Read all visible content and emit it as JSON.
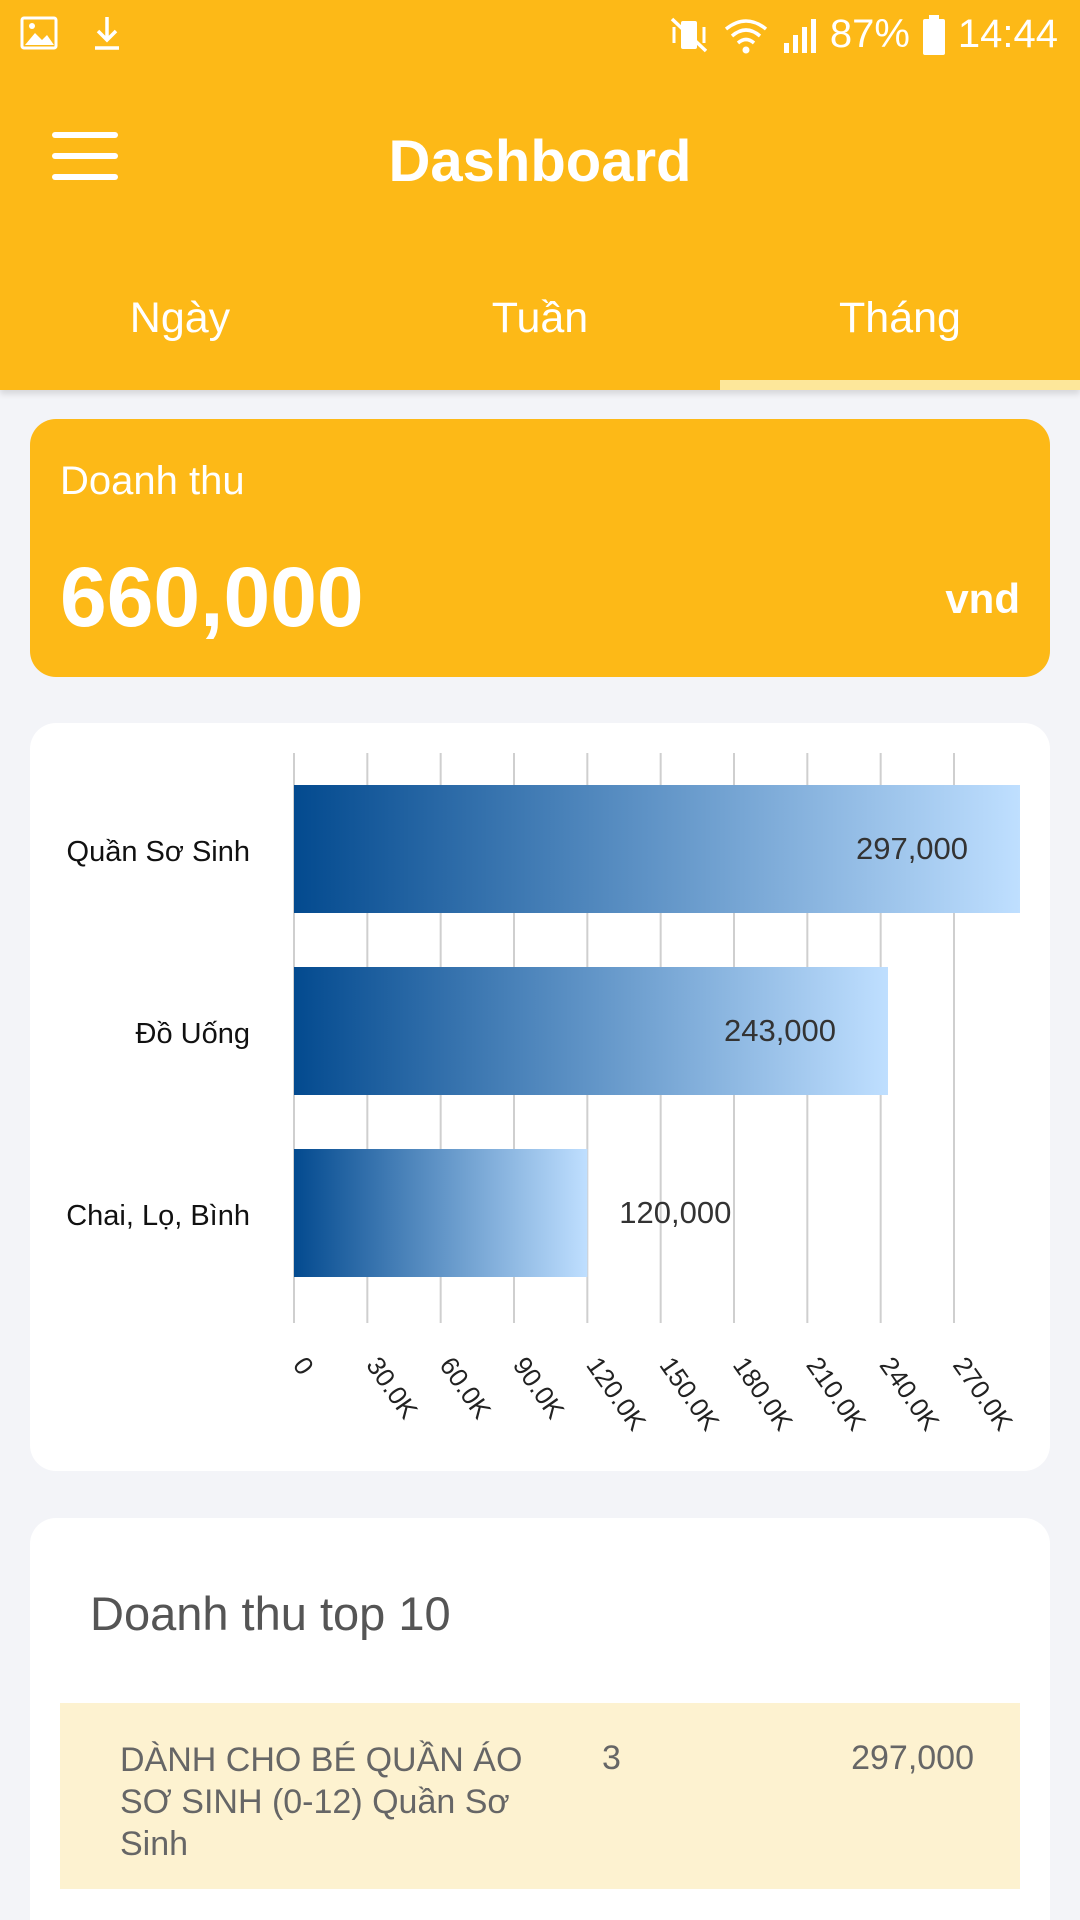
{
  "status_bar": {
    "left_icons": [
      "image-icon",
      "download-icon"
    ],
    "right_icons": [
      "vibrate-mute-icon",
      "wifi-icon",
      "signal-icon"
    ],
    "battery": "87%",
    "time": "14:44"
  },
  "header": {
    "title": "Dashboard",
    "menu_icon": "hamburger-menu-icon"
  },
  "tabs": [
    {
      "label": "Ngày",
      "active": false
    },
    {
      "label": "Tuần",
      "active": false
    },
    {
      "label": "Tháng",
      "active": true
    }
  ],
  "revenue": {
    "label": "Doanh thu",
    "amount": "660,000",
    "unit": "vnd"
  },
  "chart_data": {
    "type": "bar",
    "orientation": "horizontal",
    "categories": [
      "Quần Sơ Sinh",
      "Đồ Uống",
      "Chai, Lọ, Bình"
    ],
    "values": [
      297000,
      243000,
      120000
    ],
    "value_labels": [
      "297,000",
      "243,000",
      "120,000"
    ],
    "x_ticks": [
      "0",
      "30.0K",
      "60.0K",
      "90.0K",
      "120.0K",
      "150.0K",
      "180.0K",
      "210.0K",
      "240.0K",
      "270.0K"
    ],
    "xlim": [
      0,
      297000
    ],
    "grid": true,
    "colors": {
      "bar_start": "#034a8f",
      "bar_end": "#bfdfff"
    }
  },
  "top10": {
    "title": "Doanh thu top 10",
    "rows": [
      {
        "name": "DÀNH CHO BÉ QUẦN ÁO SƠ SINH (0-12) Quần Sơ Sinh",
        "qty": "3",
        "amount": "297,000"
      }
    ]
  },
  "colors": {
    "primary": "#fdb917",
    "tab_indicator": "#fde79a",
    "row_highlight": "#fdf2d0",
    "background": "#f3f4f8"
  }
}
